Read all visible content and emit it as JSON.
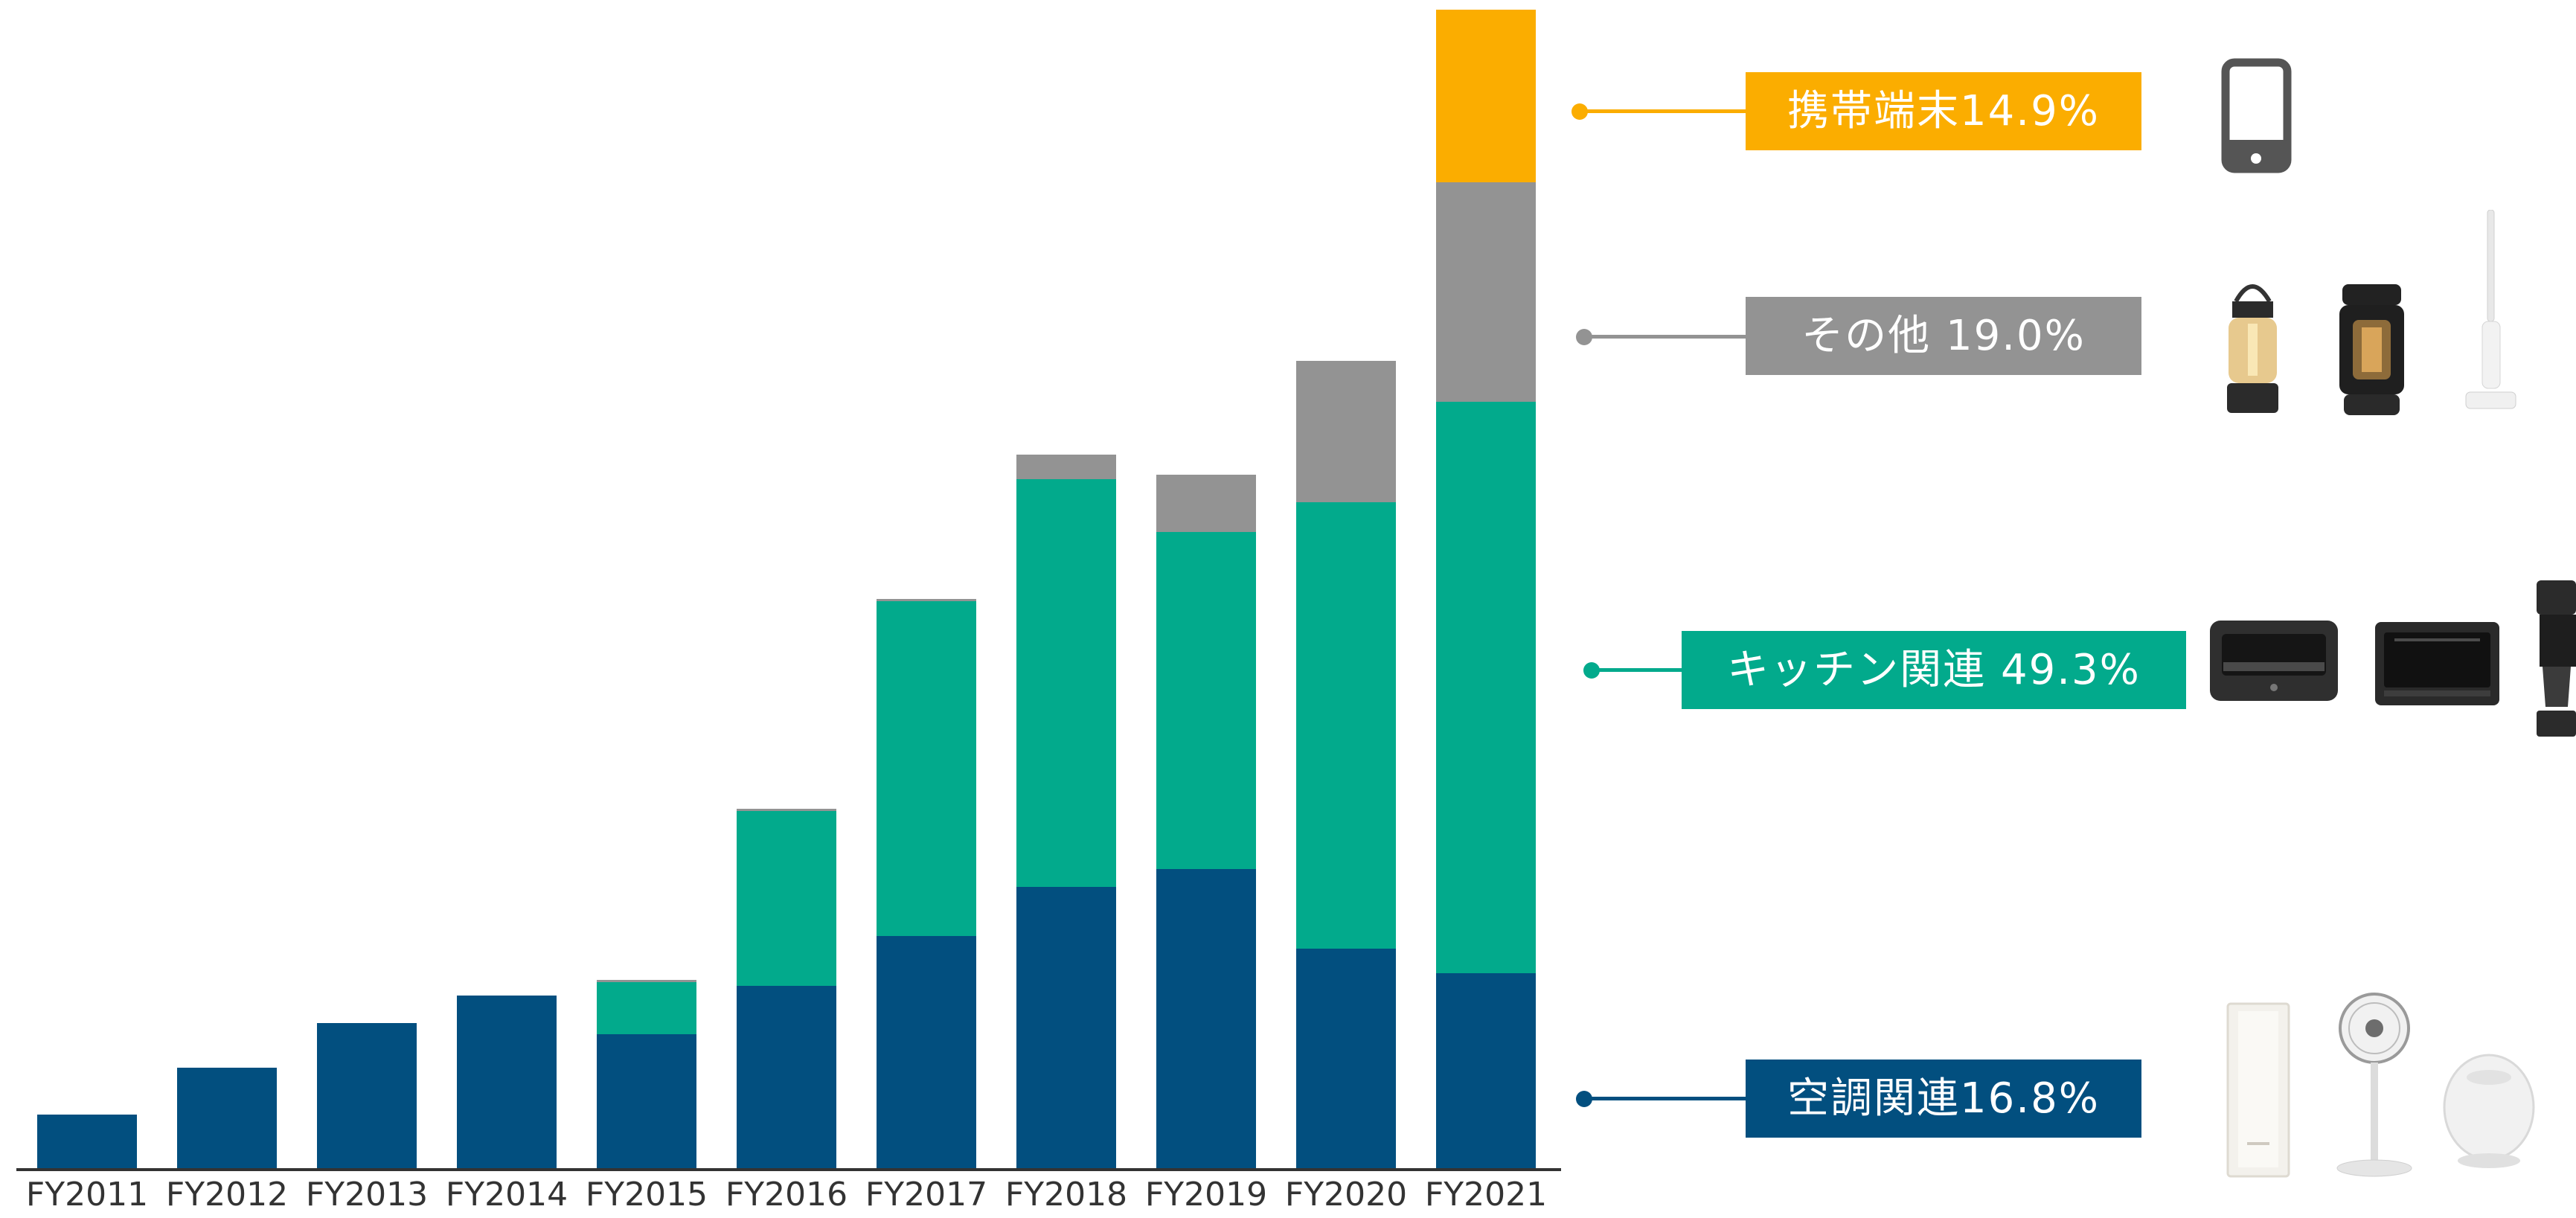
{
  "chart_data": {
    "type": "bar",
    "stacked": true,
    "categories": [
      "FY2011",
      "FY2012",
      "FY2013",
      "FY2014",
      "FY2015",
      "FY2016",
      "FY2017",
      "FY2018",
      "FY2019",
      "FY2020",
      "FY2021"
    ],
    "series": [
      {
        "name": "空調関連",
        "color": "#024f7f",
        "values": [
          72,
          135,
          195,
          232,
          180,
          245,
          312,
          378,
          402,
          295,
          262
        ]
      },
      {
        "name": "キッチン関連",
        "color": "#02aa8c",
        "values": [
          0,
          0,
          0,
          0,
          70,
          235,
          450,
          548,
          453,
          600,
          768
        ]
      },
      {
        "name": "その他",
        "color": "#939393",
        "values": [
          0,
          0,
          0,
          0,
          3,
          3,
          3,
          33,
          77,
          190,
          295
        ]
      },
      {
        "name": "携帯端末",
        "color": "#fbad00",
        "values": [
          0,
          0,
          0,
          0,
          0,
          0,
          0,
          0,
          0,
          0,
          232
        ]
      }
    ],
    "ylim": [
      0,
      1560
    ],
    "grid": false,
    "show_y_axis": false,
    "legend": [
      {
        "label": "携帯端末14.9%",
        "color": "#fbad00",
        "icons": [
          "smartphone-icon"
        ]
      },
      {
        "label": "その他 19.0%",
        "color": "#939393",
        "icons": [
          "lantern-icon",
          "speaker-lantern-icon",
          "stick-vacuum-icon"
        ]
      },
      {
        "label": "キッチン関連 49.3%",
        "color": "#02aa8c",
        "icons": [
          "toaster-icon",
          "oven-range-icon",
          "coffee-maker-icon"
        ]
      },
      {
        "label": "空調関連16.8%",
        "color": "#024f7f",
        "icons": [
          "air-purifier-icon",
          "electric-fan-icon",
          "humidifier-icon"
        ]
      }
    ]
  }
}
